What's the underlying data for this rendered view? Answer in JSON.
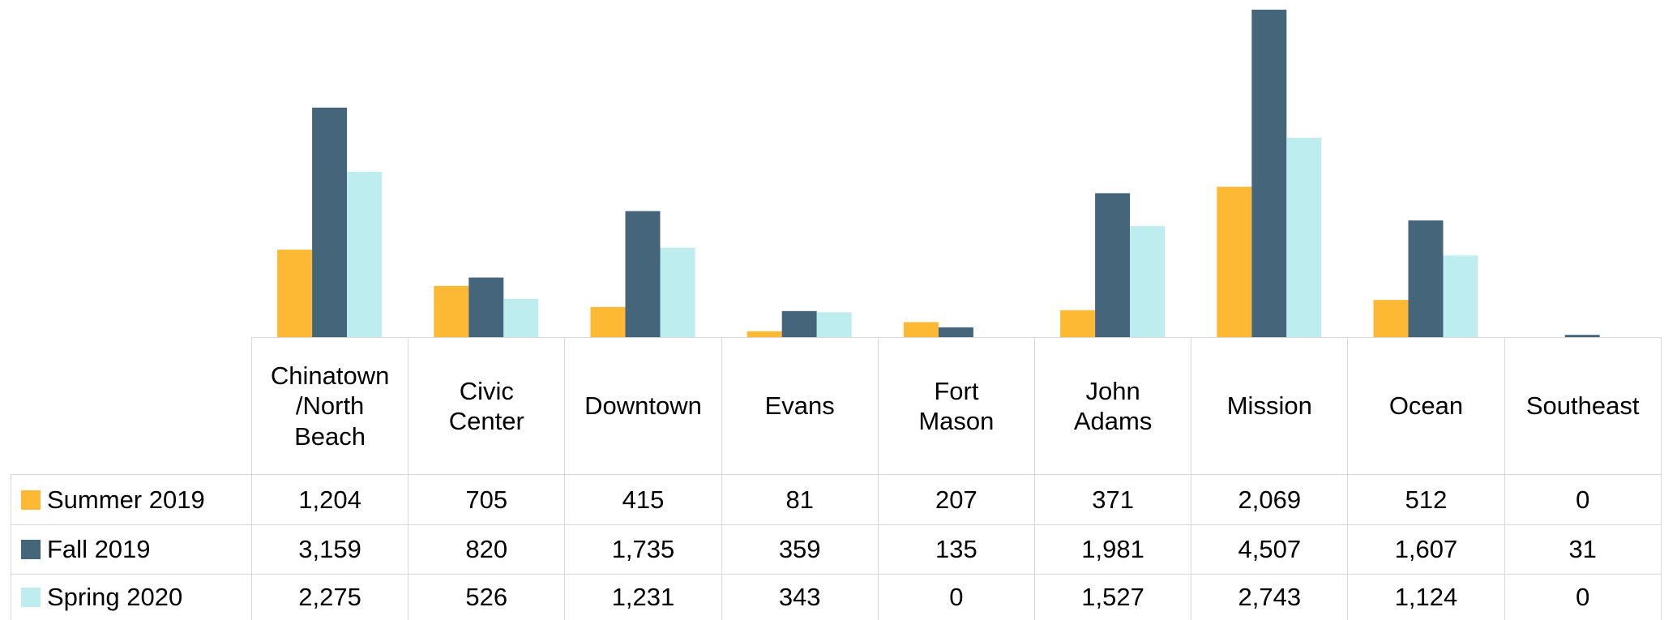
{
  "chart_data": {
    "type": "bar",
    "categories": [
      "Chinatown\n/North\nBeach",
      "Civic\nCenter",
      "Downtown",
      "Evans",
      "Fort\nMason",
      "John\nAdams",
      "Mission",
      "Ocean",
      "Southeast"
    ],
    "series": [
      {
        "name": "Summer 2019",
        "color": "#fdb933",
        "values": [
          1204,
          705,
          415,
          81,
          207,
          371,
          2069,
          512,
          0
        ],
        "value_labels": [
          "1,204",
          "705",
          "415",
          "81",
          "207",
          "371",
          "2,069",
          "512",
          "0"
        ]
      },
      {
        "name": "Fall 2019",
        "color": "#44657a",
        "values": [
          3159,
          820,
          1735,
          359,
          135,
          1981,
          4507,
          1607,
          31
        ],
        "value_labels": [
          "3,159",
          "820",
          "1,735",
          "359",
          "135",
          "1,981",
          "4,507",
          "1,607",
          "31"
        ]
      },
      {
        "name": "Spring 2020",
        "color": "#bdedee",
        "values": [
          2275,
          526,
          1231,
          343,
          0,
          1527,
          2743,
          1124,
          0
        ],
        "value_labels": [
          "2,275",
          "526",
          "1,231",
          "343",
          "0",
          "1,527",
          "2,743",
          "1,124",
          "0"
        ]
      }
    ],
    "ylim": [
      0,
      4640
    ]
  }
}
